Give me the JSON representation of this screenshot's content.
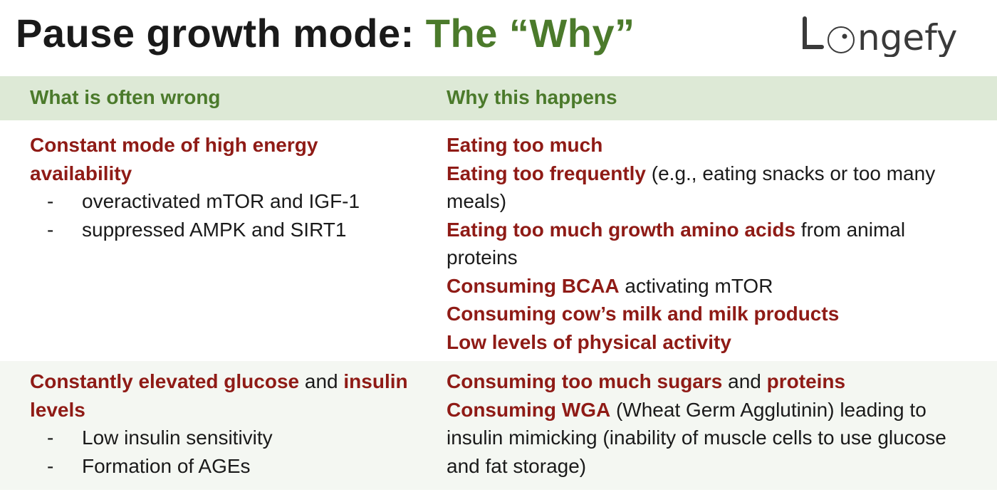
{
  "title": {
    "main": "Pause growth mode: ",
    "accent": "The “Why”"
  },
  "logo": {
    "text": "Longefy"
  },
  "header": {
    "left": "What is often wrong",
    "right": "Why this happens"
  },
  "colors": {
    "accent_green": "#4b7a2b",
    "emphasis_red": "#8f1b16",
    "header_band": "#dde9d6",
    "row_band": "#f4f7f2"
  },
  "rows": [
    {
      "left": {
        "heading": "Constant mode of high energy availability",
        "bullets": [
          "overactivated mTOR and IGF-1",
          "suppressed AMPK and SIRT1"
        ]
      },
      "right": [
        {
          "bold": "Eating too much",
          "rest": ""
        },
        {
          "bold": "Eating too frequently",
          "rest": " (e.g., eating snacks or too many meals)"
        },
        {
          "bold": "Eating too much growth amino acids",
          "rest": " from animal proteins"
        },
        {
          "bold": "Consuming BCAA",
          "rest": " activating mTOR"
        },
        {
          "bold": "Consuming cow’s milk and milk products",
          "rest": ""
        },
        {
          "bold": "Low levels of physical activity",
          "rest": ""
        }
      ]
    },
    {
      "left": {
        "heading_bold1": "Constantly elevated glucose",
        "heading_mid": " and ",
        "heading_bold2": "insulin levels",
        "bullets": [
          "Low insulin sensitivity",
          "Formation of AGEs"
        ]
      },
      "right": [
        {
          "bold": "Consuming too much sugars",
          "mid": " and ",
          "bold2": "proteins"
        },
        {
          "bold": "Consuming WGA",
          "rest": " (Wheat Germ Agglutinin) leading to insulin mimicking (inability of muscle cells to use glucose and fat storage)"
        }
      ]
    }
  ],
  "bullet_marker": "-"
}
